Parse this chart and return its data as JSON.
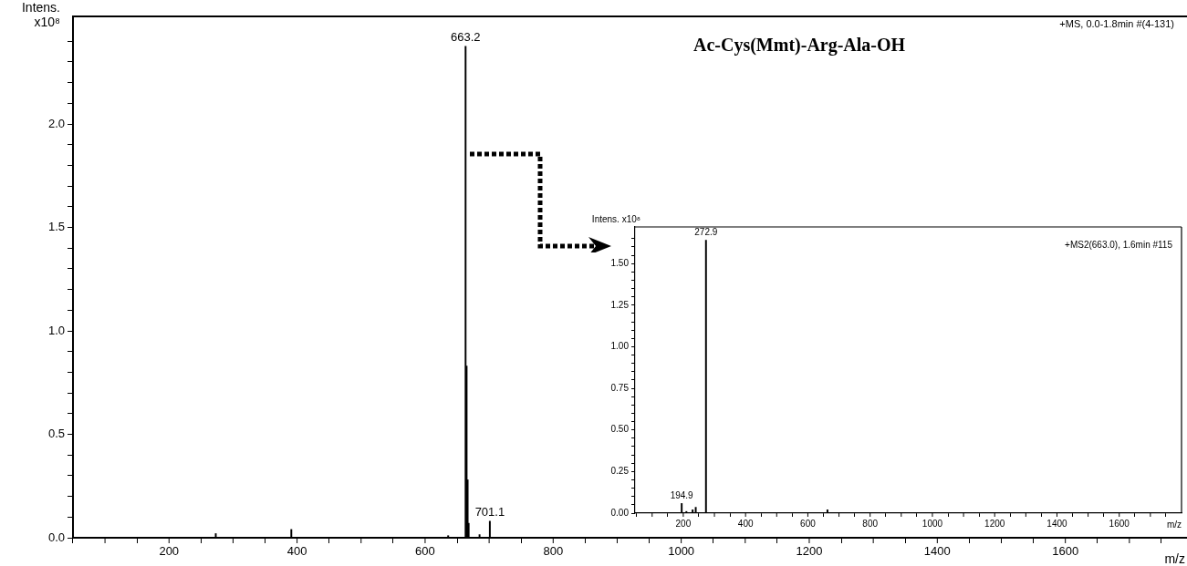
{
  "chart_data": [
    {
      "type": "bar",
      "title": "Ac-Cys(Mmt)-Arg-Ala-OH",
      "xlabel": "m/z",
      "ylabel": "Intens. x10⁸",
      "annotations": [
        "+MS, 0.0-1.8min #(4-131)",
        {
          "text": "663.2",
          "x": 663.2,
          "y": 2.375
        },
        {
          "text": "701.1",
          "x": 701.1,
          "y": 0.08
        }
      ],
      "xlim": [
        50,
        1790
      ],
      "ylim": [
        0,
        2.52
      ],
      "xticks": [
        {
          "value": 100,
          "label": null
        },
        200,
        {
          "value": 300,
          "label": null
        },
        400,
        {
          "value": 500,
          "label": null
        },
        600,
        {
          "value": 700,
          "label": null
        },
        800,
        {
          "value": 900,
          "label": null
        },
        1000,
        {
          "value": 1100,
          "label": null
        },
        1200,
        {
          "value": 1300,
          "label": null
        },
        1400,
        {
          "value": 1500,
          "label": null
        },
        1600,
        {
          "value": 1700,
          "label": null
        }
      ],
      "yticks": [
        {
          "value": 0,
          "label": "0.0"
        },
        {
          "value": 0.1,
          "label": null
        },
        {
          "value": 0.2,
          "label": null
        },
        {
          "value": 0.3,
          "label": null
        },
        {
          "value": 0.4,
          "label": null
        },
        0.5,
        {
          "value": 0.6,
          "label": null
        },
        {
          "value": 0.7,
          "label": null
        },
        {
          "value": 0.8,
          "label": null
        },
        {
          "value": 0.9,
          "label": null
        },
        {
          "value": 1,
          "label": "1.0"
        },
        {
          "value": 1.1,
          "label": null
        },
        {
          "value": 1.2,
          "label": null
        },
        {
          "value": 1.3,
          "label": null
        },
        {
          "value": 1.4,
          "label": null
        },
        1.5,
        {
          "value": 1.6,
          "label": null
        },
        {
          "value": 1.7,
          "label": null
        },
        {
          "value": 1.8,
          "label": null
        },
        {
          "value": 1.9,
          "label": null
        },
        {
          "value": 2,
          "label": "2.0"
        },
        {
          "value": 2.1,
          "label": null
        },
        {
          "value": 2.2,
          "label": null
        },
        {
          "value": 2.3,
          "label": null
        },
        {
          "value": 2.4,
          "label": null
        }
      ],
      "grid": false,
      "series": [
        {
          "color": "#000000",
          "x": [
            273,
            391,
            636,
            663.2,
            664.8,
            666.4,
            668,
            685,
            701.1
          ],
          "values": [
            0.02,
            0.04,
            0.01,
            2.375,
            0.83,
            0.28,
            0.07,
            0.015,
            0.08
          ]
        }
      ]
    },
    {
      "type": "bar",
      "xlabel": "m/z",
      "ylabel": "Intens. x10⁸",
      "annotations": [
        "+MS2(663.0), 1.6min #115",
        {
          "text": "194.9",
          "x": 194.9,
          "y": 0.058
        },
        {
          "text": "272.9",
          "x": 272.9,
          "y": 1.64
        }
      ],
      "xlim": [
        45,
        1800
      ],
      "ylim": [
        0,
        1.72
      ],
      "xticks": [
        {
          "value": 100,
          "label": null
        },
        200,
        {
          "value": 300,
          "label": null
        },
        400,
        {
          "value": 500,
          "label": null
        },
        600,
        {
          "value": 700,
          "label": null
        },
        800,
        {
          "value": 900,
          "label": null
        },
        1000,
        {
          "value": 1100,
          "label": null
        },
        1200,
        {
          "value": 1300,
          "label": null
        },
        1400,
        {
          "value": 1500,
          "label": null
        },
        1600,
        {
          "value": 1700,
          "label": null
        }
      ],
      "yticks": [
        {
          "value": 0,
          "label": "0.00"
        },
        {
          "value": 0.05,
          "label": null
        },
        {
          "value": 0.1,
          "label": null
        },
        {
          "value": 0.15,
          "label": null
        },
        {
          "value": 0.2,
          "label": null
        },
        0.25,
        {
          "value": 0.3,
          "label": null
        },
        {
          "value": 0.35,
          "label": null
        },
        {
          "value": 0.4,
          "label": null
        },
        {
          "value": 0.45,
          "label": null
        },
        {
          "value": 0.5,
          "label": "0.50"
        },
        {
          "value": 0.55,
          "label": null
        },
        {
          "value": 0.6,
          "label": null
        },
        {
          "value": 0.65,
          "label": null
        },
        {
          "value": 0.7,
          "label": null
        },
        0.75,
        {
          "value": 0.8,
          "label": null
        },
        {
          "value": 0.85,
          "label": null
        },
        {
          "value": 0.9,
          "label": null
        },
        {
          "value": 0.95,
          "label": null
        },
        {
          "value": 1,
          "label": "1.00"
        },
        {
          "value": 1.05,
          "label": null
        },
        {
          "value": 1.1,
          "label": null
        },
        {
          "value": 1.15,
          "label": null
        },
        {
          "value": 1.2,
          "label": null
        },
        1.25,
        {
          "value": 1.3,
          "label": null
        },
        {
          "value": 1.35,
          "label": null
        },
        {
          "value": 1.4,
          "label": null
        },
        {
          "value": 1.45,
          "label": null
        },
        {
          "value": 1.5,
          "label": "1.50"
        },
        {
          "value": 1.55,
          "label": null
        },
        {
          "value": 1.6,
          "label": null
        },
        {
          "value": 1.65,
          "label": null
        }
      ],
      "grid": false,
      "series": [
        {
          "color": "#000000",
          "x": [
            194.9,
            210,
            230,
            240,
            272.9,
            663
          ],
          "values": [
            0.058,
            0.01,
            0.02,
            0.035,
            1.64,
            0.02
          ]
        }
      ]
    }
  ]
}
